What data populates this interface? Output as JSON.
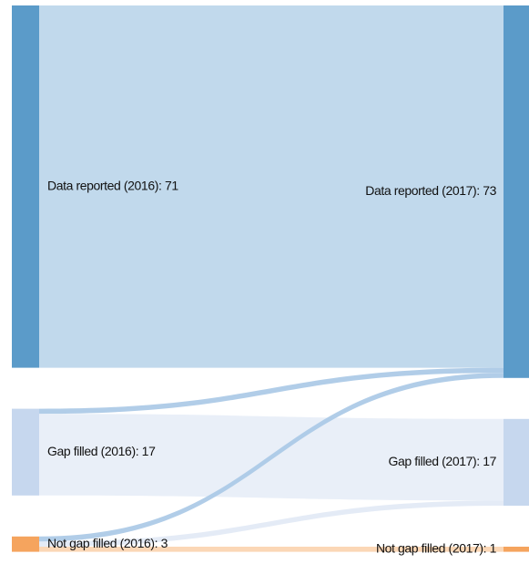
{
  "chart_data": {
    "type": "sankey",
    "nodes": [
      {
        "label": "Data reported (2016): 71",
        "value": 71,
        "column": 0,
        "color": "#5b9bc9"
      },
      {
        "label": "Gap filled (2016): 17",
        "value": 17,
        "column": 0,
        "color": "#c6d7ee"
      },
      {
        "label": "Not gap filled (2016): 3",
        "value": 3,
        "column": 0,
        "color": "#f5a45e"
      },
      {
        "label": "Data reported (2017): 73",
        "value": 73,
        "column": 1,
        "color": "#5b9bc9"
      },
      {
        "label": "Gap filled (2017): 17",
        "value": 17,
        "column": 1,
        "color": "#c6d7ee"
      },
      {
        "label": "Not gap filled (2017): 1",
        "value": 1,
        "column": 1,
        "color": "#f5a45e"
      }
    ],
    "links": [
      {
        "source": 0,
        "target": 3,
        "value": 71,
        "color": "#bad5ea"
      },
      {
        "source": 1,
        "target": 3,
        "value": 1,
        "color": "#a8c8e6"
      },
      {
        "source": 1,
        "target": 4,
        "value": 16,
        "color": "#e7edf7"
      },
      {
        "source": 2,
        "target": 3,
        "value": 1,
        "color": "#a8c8e6"
      },
      {
        "source": 2,
        "target": 4,
        "value": 1,
        "color": "#e1e9f5"
      },
      {
        "source": 2,
        "target": 5,
        "value": 1,
        "color": "#fbd3ae"
      }
    ]
  }
}
